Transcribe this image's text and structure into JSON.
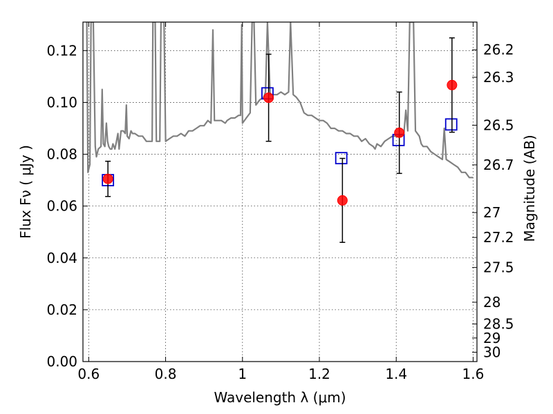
{
  "chart_data": {
    "type": "scatter",
    "title": "",
    "xlabel": "Wavelength  λ (μm)",
    "ylabel": "Flux  Fν  ( μJy )",
    "ylabel_right": "Magnitude (AB)",
    "xlim": [
      0.585,
      1.61
    ],
    "ylim": [
      0.0,
      0.131
    ],
    "grid": true,
    "x_ticks": [
      0.6,
      0.8,
      1.0,
      1.2,
      1.4,
      1.6
    ],
    "x_tick_labels": [
      "0.6",
      "0.8",
      "1",
      "1.2",
      "1.4",
      "1.6"
    ],
    "y_ticks": [
      0.0,
      0.02,
      0.04,
      0.06,
      0.08,
      0.1,
      0.12
    ],
    "y_tick_labels": [
      "0.00",
      "0.02",
      "0.04",
      "0.06",
      "0.08",
      "0.10",
      "0.12"
    ],
    "right_ticks": [
      {
        "label": "26.2",
        "flux": 0.1203
      },
      {
        "label": "26.3",
        "flux": 0.1097
      },
      {
        "label": "26.5",
        "flux": 0.0912
      },
      {
        "label": "26.7",
        "flux": 0.0759
      },
      {
        "label": "27",
        "flux": 0.0575
      },
      {
        "label": "27.2",
        "flux": 0.0479
      },
      {
        "label": "27.5",
        "flux": 0.0363
      },
      {
        "label": "28",
        "flux": 0.0229
      },
      {
        "label": "28.5",
        "flux": 0.0145
      },
      {
        "label": "29",
        "flux": 0.0091
      },
      {
        "label": "30",
        "flux": 0.0036
      }
    ],
    "series": [
      {
        "kind": "spectrum",
        "color": "#808080",
        "points": [
          [
            0.595,
            0.131
          ],
          [
            0.598,
            0.073
          ],
          [
            0.603,
            0.076
          ],
          [
            0.606,
            0.131
          ],
          [
            0.612,
            0.131
          ],
          [
            0.617,
            0.083
          ],
          [
            0.62,
            0.079
          ],
          [
            0.625,
            0.082
          ],
          [
            0.632,
            0.083
          ],
          [
            0.635,
            0.105
          ],
          [
            0.638,
            0.084
          ],
          [
            0.642,
            0.083
          ],
          [
            0.646,
            0.092
          ],
          [
            0.649,
            0.085
          ],
          [
            0.652,
            0.083
          ],
          [
            0.656,
            0.082
          ],
          [
            0.66,
            0.082
          ],
          [
            0.663,
            0.084
          ],
          [
            0.668,
            0.082
          ],
          [
            0.671,
            0.084
          ],
          [
            0.676,
            0.088
          ],
          [
            0.679,
            0.082
          ],
          [
            0.684,
            0.089
          ],
          [
            0.69,
            0.089
          ],
          [
            0.695,
            0.088
          ],
          [
            0.698,
            0.099
          ],
          [
            0.7,
            0.087
          ],
          [
            0.705,
            0.086
          ],
          [
            0.71,
            0.089
          ],
          [
            0.714,
            0.088
          ],
          [
            0.72,
            0.088
          ],
          [
            0.73,
            0.087
          ],
          [
            0.74,
            0.087
          ],
          [
            0.75,
            0.085
          ],
          [
            0.76,
            0.085
          ],
          [
            0.765,
            0.085
          ],
          [
            0.767,
            0.131
          ],
          [
            0.773,
            0.131
          ],
          [
            0.776,
            0.085
          ],
          [
            0.785,
            0.085
          ],
          [
            0.788,
            0.131
          ],
          [
            0.796,
            0.131
          ],
          [
            0.8,
            0.085
          ],
          [
            0.81,
            0.086
          ],
          [
            0.82,
            0.087
          ],
          [
            0.83,
            0.087
          ],
          [
            0.84,
            0.088
          ],
          [
            0.85,
            0.087
          ],
          [
            0.86,
            0.089
          ],
          [
            0.87,
            0.089
          ],
          [
            0.88,
            0.09
          ],
          [
            0.89,
            0.091
          ],
          [
            0.9,
            0.091
          ],
          [
            0.91,
            0.093
          ],
          [
            0.918,
            0.092
          ],
          [
            0.923,
            0.128
          ],
          [
            0.927,
            0.093
          ],
          [
            0.935,
            0.093
          ],
          [
            0.945,
            0.093
          ],
          [
            0.955,
            0.092
          ],
          [
            0.96,
            0.093
          ],
          [
            0.97,
            0.094
          ],
          [
            0.98,
            0.094
          ],
          [
            0.99,
            0.095
          ],
          [
            0.995,
            0.095
          ],
          [
            0.998,
            0.13
          ],
          [
            1.0,
            0.092
          ],
          [
            1.01,
            0.094
          ],
          [
            1.02,
            0.096
          ],
          [
            1.025,
            0.131
          ],
          [
            1.03,
            0.131
          ],
          [
            1.035,
            0.099
          ],
          [
            1.045,
            0.101
          ],
          [
            1.055,
            0.102
          ],
          [
            1.06,
            0.104
          ],
          [
            1.065,
            0.131
          ],
          [
            1.072,
            0.103
          ],
          [
            1.08,
            0.103
          ],
          [
            1.09,
            0.103
          ],
          [
            1.1,
            0.104
          ],
          [
            1.11,
            0.103
          ],
          [
            1.12,
            0.104
          ],
          [
            1.125,
            0.131
          ],
          [
            1.132,
            0.103
          ],
          [
            1.14,
            0.102
          ],
          [
            1.15,
            0.1
          ],
          [
            1.16,
            0.096
          ],
          [
            1.17,
            0.095
          ],
          [
            1.18,
            0.095
          ],
          [
            1.19,
            0.094
          ],
          [
            1.2,
            0.093
          ],
          [
            1.21,
            0.093
          ],
          [
            1.22,
            0.092
          ],
          [
            1.23,
            0.09
          ],
          [
            1.24,
            0.09
          ],
          [
            1.25,
            0.089
          ],
          [
            1.26,
            0.089
          ],
          [
            1.27,
            0.088
          ],
          [
            1.28,
            0.088
          ],
          [
            1.29,
            0.087
          ],
          [
            1.3,
            0.087
          ],
          [
            1.31,
            0.085
          ],
          [
            1.32,
            0.086
          ],
          [
            1.33,
            0.084
          ],
          [
            1.34,
            0.083
          ],
          [
            1.345,
            0.082
          ],
          [
            1.35,
            0.084
          ],
          [
            1.36,
            0.083
          ],
          [
            1.37,
            0.085
          ],
          [
            1.38,
            0.086
          ],
          [
            1.39,
            0.087
          ],
          [
            1.4,
            0.087
          ],
          [
            1.41,
            0.087
          ],
          [
            1.42,
            0.088
          ],
          [
            1.425,
            0.097
          ],
          [
            1.43,
            0.089
          ],
          [
            1.435,
            0.131
          ],
          [
            1.445,
            0.131
          ],
          [
            1.45,
            0.089
          ],
          [
            1.46,
            0.087
          ],
          [
            1.465,
            0.084
          ],
          [
            1.47,
            0.083
          ],
          [
            1.48,
            0.083
          ],
          [
            1.49,
            0.081
          ],
          [
            1.5,
            0.08
          ],
          [
            1.51,
            0.079
          ],
          [
            1.52,
            0.078
          ],
          [
            1.525,
            0.09
          ],
          [
            1.53,
            0.078
          ],
          [
            1.54,
            0.077
          ],
          [
            1.55,
            0.076
          ],
          [
            1.56,
            0.075
          ],
          [
            1.57,
            0.073
          ],
          [
            1.58,
            0.073
          ],
          [
            1.59,
            0.071
          ],
          [
            1.6,
            0.071
          ]
        ]
      },
      {
        "kind": "observed",
        "color": "#ff0000",
        "points": [
          {
            "x": 0.65,
            "y": 0.0705,
            "err": 0.0068
          },
          {
            "x": 1.068,
            "y": 0.1018,
            "err": 0.0168
          },
          {
            "x": 1.26,
            "y": 0.0622,
            "err": 0.0162
          },
          {
            "x": 1.408,
            "y": 0.0883,
            "err": 0.0157
          },
          {
            "x": 1.545,
            "y": 0.1067,
            "err": 0.0182
          }
        ]
      },
      {
        "kind": "model",
        "color": "#0000cc",
        "points": [
          {
            "x": 0.65,
            "y": 0.07
          },
          {
            "x": 1.065,
            "y": 0.1035
          },
          {
            "x": 1.257,
            "y": 0.0785
          },
          {
            "x": 1.406,
            "y": 0.0855
          },
          {
            "x": 1.543,
            "y": 0.0915
          }
        ]
      }
    ]
  }
}
